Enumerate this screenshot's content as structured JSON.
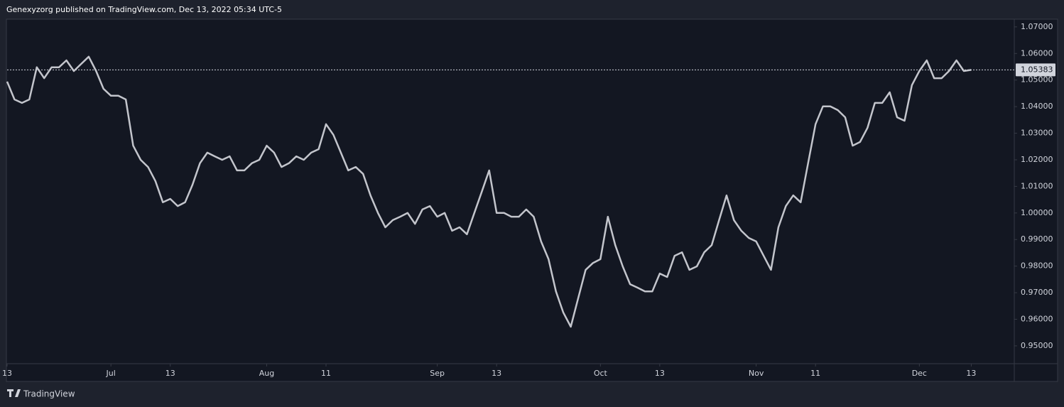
{
  "header": "Genexyzorg published on TradingView.com, Dec 13, 2022 05:34 UTC-5",
  "footer": "TradingView",
  "chart_data": {
    "type": "line",
    "color": "#c3c5cc",
    "values": [
      1.0494,
      1.0427,
      1.0414,
      1.0427,
      1.0548,
      1.0507,
      1.0548,
      1.0548,
      1.0574,
      1.0534,
      1.0561,
      1.0588,
      1.0534,
      1.0467,
      1.0441,
      1.0441,
      1.0427,
      1.0253,
      1.02,
      1.0173,
      1.012,
      1.004,
      1.0053,
      1.0026,
      1.004,
      1.0106,
      1.0187,
      1.0227,
      1.0213,
      1.02,
      1.0213,
      1.016,
      1.016,
      1.0187,
      1.02,
      1.0253,
      1.0227,
      1.0173,
      1.0187,
      1.0213,
      1.02,
      1.0227,
      1.024,
      1.0334,
      1.0294,
      1.0227,
      1.016,
      1.0173,
      1.0147,
      1.0066,
      1.0,
      0.9946,
      0.9973,
      0.9986,
      1.0,
      0.9959,
      1.0013,
      1.0026,
      0.9986,
      1.0,
      0.9933,
      0.9946,
      0.992,
      1.0,
      1.008,
      1.016,
      1.0,
      1.0,
      0.9986,
      0.9986,
      1.0013,
      0.9986,
      0.9893,
      0.9826,
      0.9705,
      0.9625,
      0.9572,
      0.9679,
      0.9786,
      0.9812,
      0.9826,
      0.9986,
      0.9879,
      0.9799,
      0.9732,
      0.9719,
      0.9705,
      0.9705,
      0.9772,
      0.9759,
      0.9839,
      0.9852,
      0.9786,
      0.9799,
      0.9852,
      0.9879,
      0.9973,
      1.0066,
      0.9973,
      0.9933,
      0.9906,
      0.9893,
      0.9839,
      0.9786,
      0.9946,
      1.0026,
      1.0066,
      1.004,
      1.0187,
      1.0334,
      1.0401,
      1.0401,
      1.0387,
      1.036,
      1.0253,
      1.0267,
      1.032,
      1.0414,
      1.0414,
      1.0454,
      1.036,
      1.0347,
      1.0481,
      1.0534,
      1.0574,
      1.0507,
      1.0507,
      1.0534,
      1.0574,
      1.0534,
      1.05383
    ],
    "xlim": [
      0,
      135.8
    ],
    "xticks": [
      {
        "value": 0,
        "label": "13"
      },
      {
        "value": 14,
        "label": "Jul"
      },
      {
        "value": 22,
        "label": "13"
      },
      {
        "value": 35,
        "label": "Aug"
      },
      {
        "value": 43,
        "label": "11"
      },
      {
        "value": 58,
        "label": "Sep"
      },
      {
        "value": 66,
        "label": "13"
      },
      {
        "value": 80,
        "label": "Oct"
      },
      {
        "value": 88,
        "label": "13"
      },
      {
        "value": 101,
        "label": "Nov"
      },
      {
        "value": 109,
        "label": "11"
      },
      {
        "value": 123,
        "label": "Dec"
      },
      {
        "value": 130,
        "label": "13"
      }
    ],
    "ylim": [
      0.9433,
      1.0729
    ],
    "yticks": [
      {
        "value": 1.07,
        "label": "1.07000"
      },
      {
        "value": 1.06,
        "label": "1.06000"
      },
      {
        "value": 1.05,
        "label": "1.05000"
      },
      {
        "value": 1.04,
        "label": "1.04000"
      },
      {
        "value": 1.03,
        "label": "1.03000"
      },
      {
        "value": 1.02,
        "label": "1.02000"
      },
      {
        "value": 1.01,
        "label": "1.01000"
      },
      {
        "value": 1.0,
        "label": "1.00000"
      },
      {
        "value": 0.99,
        "label": "0.99000"
      },
      {
        "value": 0.98,
        "label": "0.98000"
      },
      {
        "value": 0.97,
        "label": "0.97000"
      },
      {
        "value": 0.96,
        "label": "0.96000"
      },
      {
        "value": 0.95,
        "label": "0.95000"
      }
    ]
  }
}
